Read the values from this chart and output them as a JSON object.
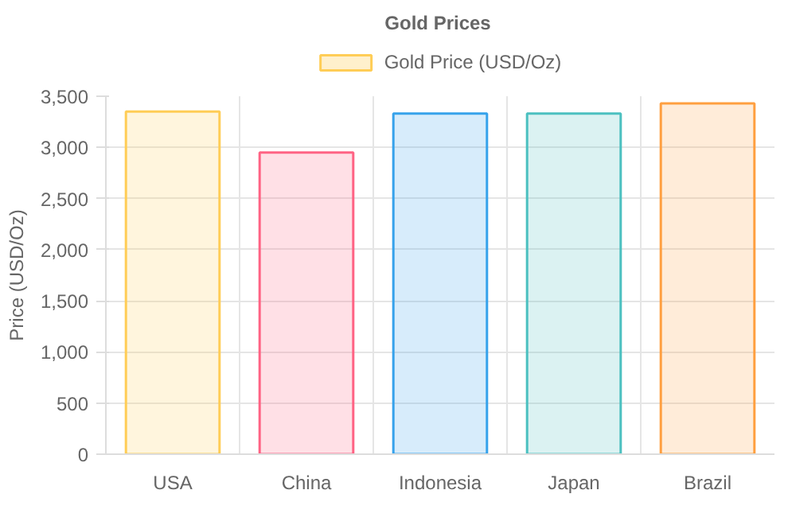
{
  "chart_data": {
    "type": "bar",
    "title": "Gold Prices",
    "ylabel": "Price (USD/Oz)",
    "categories": [
      "USA",
      "China",
      "Indonesia",
      "Japan",
      "Brazil"
    ],
    "series": [
      {
        "name": "Gold Price (USD/Oz)",
        "color": "#ffcd56",
        "colors": [
          "#ffcd56",
          "#ff6384",
          "#36a2eb",
          "#4bc0c0",
          "#ff9f40"
        ],
        "values": [
          3350,
          2950,
          3330,
          3330,
          3430
        ]
      }
    ],
    "ylim": [
      0,
      3500
    ],
    "yticks": [
      {
        "value": 0,
        "label": "0"
      },
      {
        "value": 500,
        "label": "500"
      },
      {
        "value": 1000,
        "label": "1,000"
      },
      {
        "value": 1500,
        "label": "1,500"
      },
      {
        "value": 2000,
        "label": "2,000"
      },
      {
        "value": 2500,
        "label": "2,500"
      },
      {
        "value": 3000,
        "label": "3,000"
      },
      {
        "value": 3500,
        "label": "3,500"
      }
    ],
    "grid": true,
    "legend": "top"
  }
}
